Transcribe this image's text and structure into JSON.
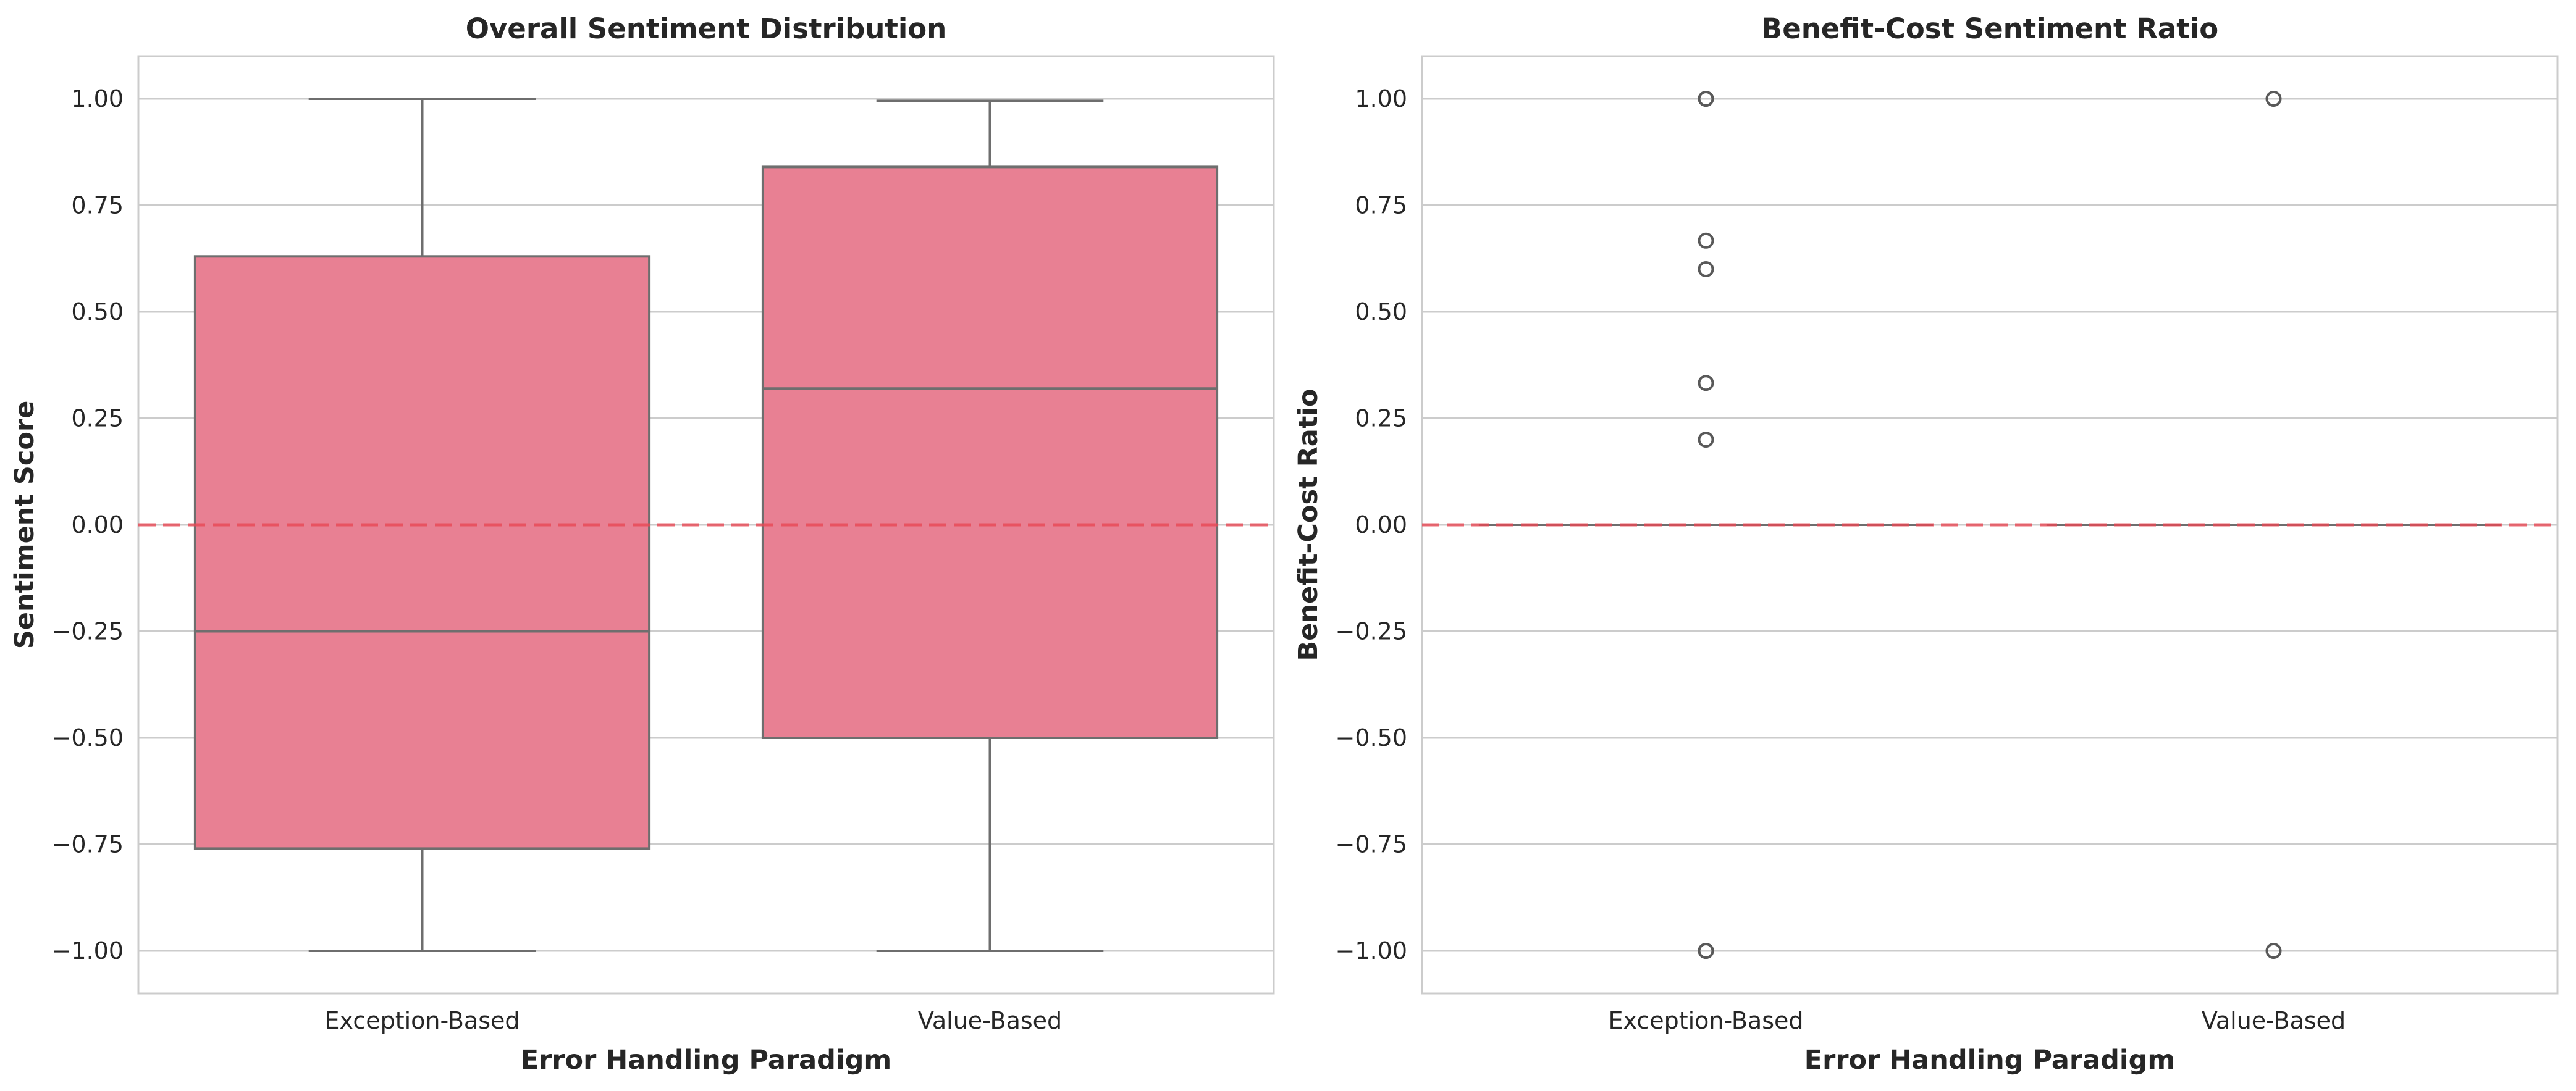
{
  "colors": {
    "box_fill": "#e88093",
    "box_edge": "#6e6e6e",
    "grid": "#cccccc",
    "spine": "#cccccc",
    "zero_line": "#e84855",
    "outlier_edge": "#595959"
  },
  "chart_data": [
    {
      "type": "box",
      "title": "Overall Sentiment Distribution",
      "xlabel": "Error Handling Paradigm",
      "ylabel": "Sentiment Score",
      "ylim": [
        -1.1,
        1.1
      ],
      "yticks": [
        1.0,
        0.75,
        0.5,
        0.25,
        0.0,
        -0.25,
        -0.5,
        -0.75,
        -1.0
      ],
      "ytick_labels": [
        "1.00",
        "0.75",
        "0.50",
        "0.25",
        "0.00",
        "−0.25",
        "−0.50",
        "−0.75",
        "−1.00"
      ],
      "grid": "horizontal",
      "reference_line": {
        "y": 0.0,
        "style": "dashed",
        "color": "#e84855"
      },
      "categories": [
        "Exception-Based",
        "Value-Based"
      ],
      "boxes": [
        {
          "category": "Exception-Based",
          "whisker_low": -1.0,
          "q1": -0.76,
          "median": -0.25,
          "q3": 0.63,
          "whisker_high": 1.0,
          "outliers": []
        },
        {
          "category": "Value-Based",
          "whisker_low": -1.0,
          "q1": -0.5,
          "median": 0.32,
          "q3": 0.84,
          "whisker_high": 0.995,
          "outliers": []
        }
      ]
    },
    {
      "type": "box",
      "title": "Benefit-Cost Sentiment Ratio",
      "xlabel": "Error Handling Paradigm",
      "ylabel": "Benefit-Cost Ratio",
      "ylim": [
        -1.1,
        1.1
      ],
      "yticks": [
        1.0,
        0.75,
        0.5,
        0.25,
        0.0,
        -0.25,
        -0.5,
        -0.75,
        -1.0
      ],
      "ytick_labels": [
        "1.00",
        "0.75",
        "0.50",
        "0.25",
        "0.00",
        "−0.25",
        "−0.50",
        "−0.75",
        "−1.00"
      ],
      "grid": "horizontal",
      "reference_line": {
        "y": 0.0,
        "style": "dashed",
        "color": "#e84855"
      },
      "categories": [
        "Exception-Based",
        "Value-Based"
      ],
      "boxes": [
        {
          "category": "Exception-Based",
          "whisker_low": 0.0,
          "q1": 0.0,
          "median": 0.0,
          "q3": 0.0,
          "whisker_high": 0.0,
          "outliers": [
            1.0,
            1.0,
            0.667,
            0.6,
            0.333,
            0.2,
            -1.0,
            -1.0
          ]
        },
        {
          "category": "Value-Based",
          "whisker_low": 0.0,
          "q1": 0.0,
          "median": 0.0,
          "q3": 0.0,
          "whisker_high": 0.0,
          "outliers": [
            1.0,
            -1.0
          ]
        }
      ]
    }
  ]
}
